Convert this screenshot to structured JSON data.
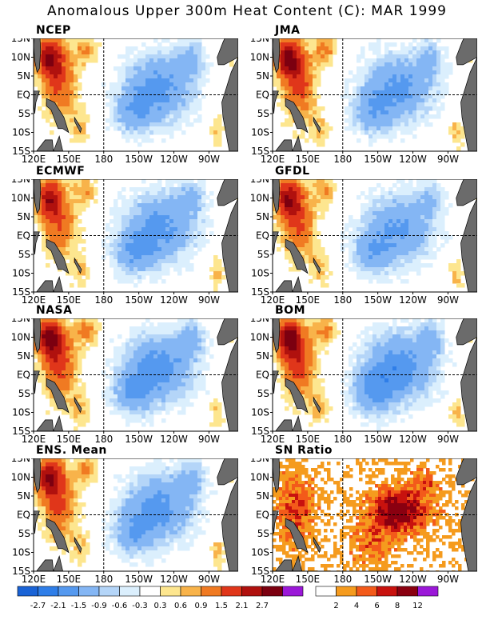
{
  "title": "Anomalous Upper 300m Heat Content (C): MAR 1999",
  "panels": [
    {
      "label": "NCEP",
      "type": "anom",
      "warm_strength": 1.0,
      "cool_strength": 1.0,
      "seed": 1
    },
    {
      "label": "JMA",
      "type": "anom",
      "warm_strength": 1.05,
      "cool_strength": 0.95,
      "seed": 2
    },
    {
      "label": "ECMWF",
      "type": "anom",
      "warm_strength": 0.9,
      "cool_strength": 1.0,
      "seed": 3
    },
    {
      "label": "GFDL",
      "type": "anom",
      "warm_strength": 0.95,
      "cool_strength": 0.9,
      "seed": 4
    },
    {
      "label": "NASA",
      "type": "anom",
      "warm_strength": 1.1,
      "cool_strength": 1.05,
      "seed": 5
    },
    {
      "label": "BOM",
      "type": "anom",
      "warm_strength": 1.1,
      "cool_strength": 1.1,
      "seed": 6
    },
    {
      "label": "ENS. Mean",
      "type": "anom",
      "warm_strength": 1.0,
      "cool_strength": 1.0,
      "seed": 7
    },
    {
      "label": "SN Ratio",
      "type": "snr",
      "seed": 8
    }
  ],
  "axes": {
    "lat_labels": [
      "15N",
      "10N",
      "5N",
      "EQ",
      "5S",
      "10S",
      "15S"
    ],
    "lon_labels": [
      "120E",
      "150E",
      "180",
      "150W",
      "120W",
      "90W"
    ],
    "lon_range_deg_east": [
      120,
      295
    ],
    "lat_range": [
      -15,
      15
    ],
    "reference_lines": [
      "EQ",
      "180"
    ]
  },
  "colorbars": {
    "anomaly": {
      "colors": [
        "#1a63d6",
        "#2f7ee8",
        "#5599ef",
        "#84b6f4",
        "#b4d5f8",
        "#dbeffd",
        "#ffffff",
        "#fde68f",
        "#f8b34a",
        "#f07a22",
        "#e0361a",
        "#b0110e",
        "#7c0010",
        "#9b18d8"
      ],
      "labels": [
        "-2.7",
        "-2.1",
        "-1.5",
        "-0.9",
        "-0.6",
        "-0.3",
        "0.3",
        "0.6",
        "0.9",
        "1.5",
        "2.1",
        "2.7"
      ],
      "levels": [
        -2.7,
        -2.1,
        -1.5,
        -0.9,
        -0.6,
        -0.3,
        0.3,
        0.6,
        0.9,
        1.5,
        2.1,
        2.7
      ]
    },
    "snr": {
      "colors": [
        "#ffffff",
        "#f59b1e",
        "#f35a1a",
        "#c8120e",
        "#8a0010",
        "#9b18d8"
      ],
      "labels": [
        "2",
        "4",
        "6",
        "8",
        "12"
      ],
      "levels": [
        2,
        4,
        6,
        8,
        12
      ]
    }
  },
  "colors": {
    "land": "#6b6b6b",
    "frame": "#000000"
  }
}
